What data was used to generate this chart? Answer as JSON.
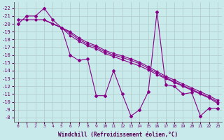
{
  "xlabel": "Windchill (Refroidissement éolien,°C)",
  "background_color": "#c8eaea",
  "grid_color": "#b0c8c8",
  "line_color": "#880088",
  "xlim": [
    -0.5,
    23.5
  ],
  "ylim": [
    -22.5,
    -7.5
  ],
  "yticks": [
    -8,
    -9,
    -10,
    -11,
    -12,
    -13,
    -14,
    -15,
    -16,
    -17,
    -18,
    -19,
    -20,
    -21,
    -22
  ],
  "xticks": [
    0,
    1,
    2,
    3,
    4,
    5,
    6,
    7,
    8,
    9,
    10,
    11,
    12,
    13,
    14,
    15,
    16,
    17,
    18,
    19,
    20,
    21,
    22,
    23
  ],
  "xvals": [
    0,
    1,
    2,
    3,
    4,
    5,
    6,
    7,
    8,
    9,
    10,
    11,
    12,
    13,
    14,
    15,
    16,
    17,
    18,
    19,
    20,
    21,
    22,
    23
  ],
  "series_zigzag": [
    -20,
    -21,
    -21,
    -22,
    -20.5,
    -19.5,
    -16,
    -15.3,
    -15.5,
    -10.8,
    -10.8,
    -14,
    -11,
    -8.2,
    -9,
    -11.3,
    -21.5,
    -12.2,
    -12,
    -11,
    -11.2,
    -8.2,
    -9.2,
    -9.2
  ],
  "series_line1": [
    -20.5,
    -20.5,
    -20.5,
    -20.5,
    -20,
    -19.5,
    -18.5,
    -17.8,
    -17.2,
    -16.8,
    -16.2,
    -15.8,
    -15.4,
    -15.0,
    -14.6,
    -14.1,
    -13.5,
    -13.0,
    -12.5,
    -12.0,
    -11.5,
    -11.0,
    -10.5,
    -9.8
  ],
  "series_line2": [
    -20.5,
    -20.5,
    -20.5,
    -20.5,
    -20,
    -19.5,
    -18.8,
    -18.0,
    -17.4,
    -17.0,
    -16.4,
    -16.0,
    -15.7,
    -15.3,
    -14.9,
    -14.3,
    -13.7,
    -13.1,
    -12.6,
    -12.1,
    -11.6,
    -11.1,
    -10.6,
    -10.0
  ],
  "series_line3": [
    -20.5,
    -20.5,
    -20.5,
    -20.5,
    -20,
    -19.5,
    -19.0,
    -18.2,
    -17.6,
    -17.2,
    -16.6,
    -16.2,
    -15.9,
    -15.5,
    -15.1,
    -14.5,
    -13.9,
    -13.3,
    -12.8,
    -12.3,
    -11.8,
    -11.3,
    -10.8,
    -10.2
  ]
}
